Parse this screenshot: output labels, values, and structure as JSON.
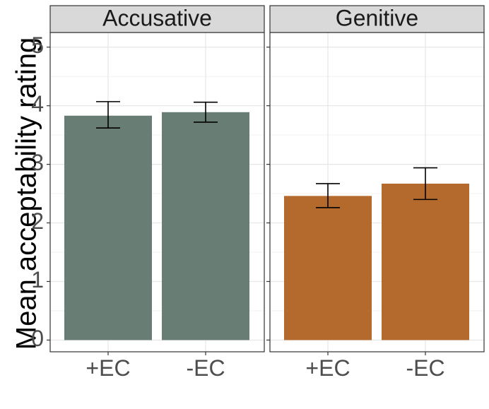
{
  "chart_data": {
    "type": "bar",
    "ylabel": "Mean acceptability rating",
    "xlabel": "",
    "ylim": [
      -0.2,
      5.25
    ],
    "y_ticks": [
      0,
      1,
      2,
      3,
      4,
      5
    ],
    "grid": true,
    "legend": "none",
    "panels": [
      {
        "name": "Accusative",
        "color": "#687d74",
        "categories": [
          "+EC",
          "-EC"
        ],
        "values": [
          3.83,
          3.89
        ],
        "error_low": [
          3.62,
          3.72
        ],
        "error_high": [
          4.07,
          4.06
        ]
      },
      {
        "name": "Genitive",
        "color": "#b46a2c",
        "categories": [
          "+EC",
          "-EC"
        ],
        "values": [
          2.46,
          2.67
        ],
        "error_low": [
          2.26,
          2.4
        ],
        "error_high": [
          2.67,
          2.94
        ]
      }
    ]
  },
  "colors": {
    "strip_bg": "#d9d9d9",
    "panel_border": "#333333",
    "grid_major": "#e6e6e6",
    "grid_minor": "#f2f2f2",
    "tick_text": "#4d4d4d",
    "error_bar": "#000000"
  }
}
